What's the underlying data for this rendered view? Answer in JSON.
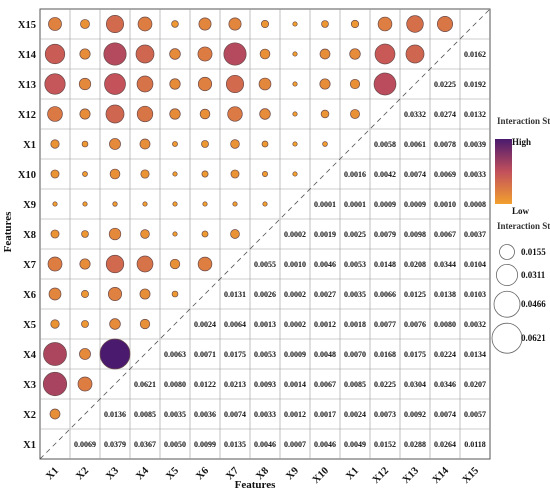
{
  "chart_data": {
    "type": "heatmap",
    "title": "",
    "xlabel": "Features",
    "ylabel": "Features",
    "x_categories": [
      "X1",
      "X2",
      "X3",
      "X4",
      "X5",
      "X6",
      "X7",
      "X8",
      "X9",
      "X10",
      "X1",
      "X12",
      "X13",
      "X14",
      "X15"
    ],
    "y_categories_bottom_to_top": [
      "X1",
      "X2",
      "X3",
      "X4",
      "X5",
      "X6",
      "X7",
      "X8",
      "X9",
      "X10",
      "X1",
      "X12",
      "X13",
      "X14",
      "X15"
    ],
    "lower_triangle_labels": [
      [
        "0.0069",
        "0.0379",
        "0.0367",
        "0.0050",
        "0.0099",
        "0.0135",
        "0.0046",
        "0.0007",
        "0.0046",
        "0.0049",
        "0.0152",
        "0.0288",
        "0.0264",
        "0.0118"
      ],
      [
        "0.0136",
        "0.0085",
        "0.0035",
        "0.0036",
        "0.0074",
        "0.0033",
        "0.0012",
        "0.0017",
        "0.0024",
        "0.0073",
        "0.0092",
        "0.0074",
        "0.0057"
      ],
      [
        "0.0621",
        "0.0080",
        "0.0122",
        "0.0213",
        "0.0093",
        "0.0014",
        "0.0067",
        "0.0085",
        "0.0225",
        "0.0304",
        "0.0346",
        "0.0207"
      ],
      [
        "0.0063",
        "0.0071",
        "0.0175",
        "0.0053",
        "0.0009",
        "0.0048",
        "0.0070",
        "0.0168",
        "0.0175",
        "0.0224",
        "0.0134"
      ],
      [
        "0.0024",
        "0.0064",
        "0.0013",
        "0.0002",
        "0.0012",
        "0.0018",
        "0.0077",
        "0.0076",
        "0.0080",
        "0.0032"
      ],
      [
        "0.0131",
        "0.0026",
        "0.0002",
        "0.0027",
        "0.0035",
        "0.0066",
        "0.0125",
        "0.0138",
        "0.0103"
      ],
      [
        "0.0055",
        "0.0010",
        "0.0046",
        "0.0053",
        "0.0148",
        "0.0208",
        "0.0344",
        "0.0104"
      ],
      [
        "0.0002",
        "0.0019",
        "0.0025",
        "0.0079",
        "0.0098",
        "0.0067",
        "0.0037"
      ],
      [
        "0.0001",
        "0.0001",
        "0.0009",
        "0.0009",
        "0.0010",
        "0.0008"
      ],
      [
        "0.0016",
        "0.0042",
        "0.0074",
        "0.0069",
        "0.0033"
      ],
      [
        "0.0058",
        "0.0061",
        "0.0078",
        "0.0039"
      ],
      [
        "0.0332",
        "0.0274",
        "0.0132"
      ],
      [
        "0.0225",
        "0.0192"
      ],
      [
        "0.0162"
      ]
    ],
    "color_scale": {
      "low": "#f2a02e",
      "mid": "#c2505c",
      "high": "#4a1a6e"
    },
    "legend_color_title": "Interaction Strength",
    "legend_high": "High",
    "legend_low": "Low",
    "legend_size_title": "Interaction Strength",
    "legend_sizes": [
      "0.0155",
      "0.0311",
      "0.0466",
      "0.0621"
    ],
    "max_value": 0.0621,
    "grid": true,
    "legend_position": "right"
  }
}
